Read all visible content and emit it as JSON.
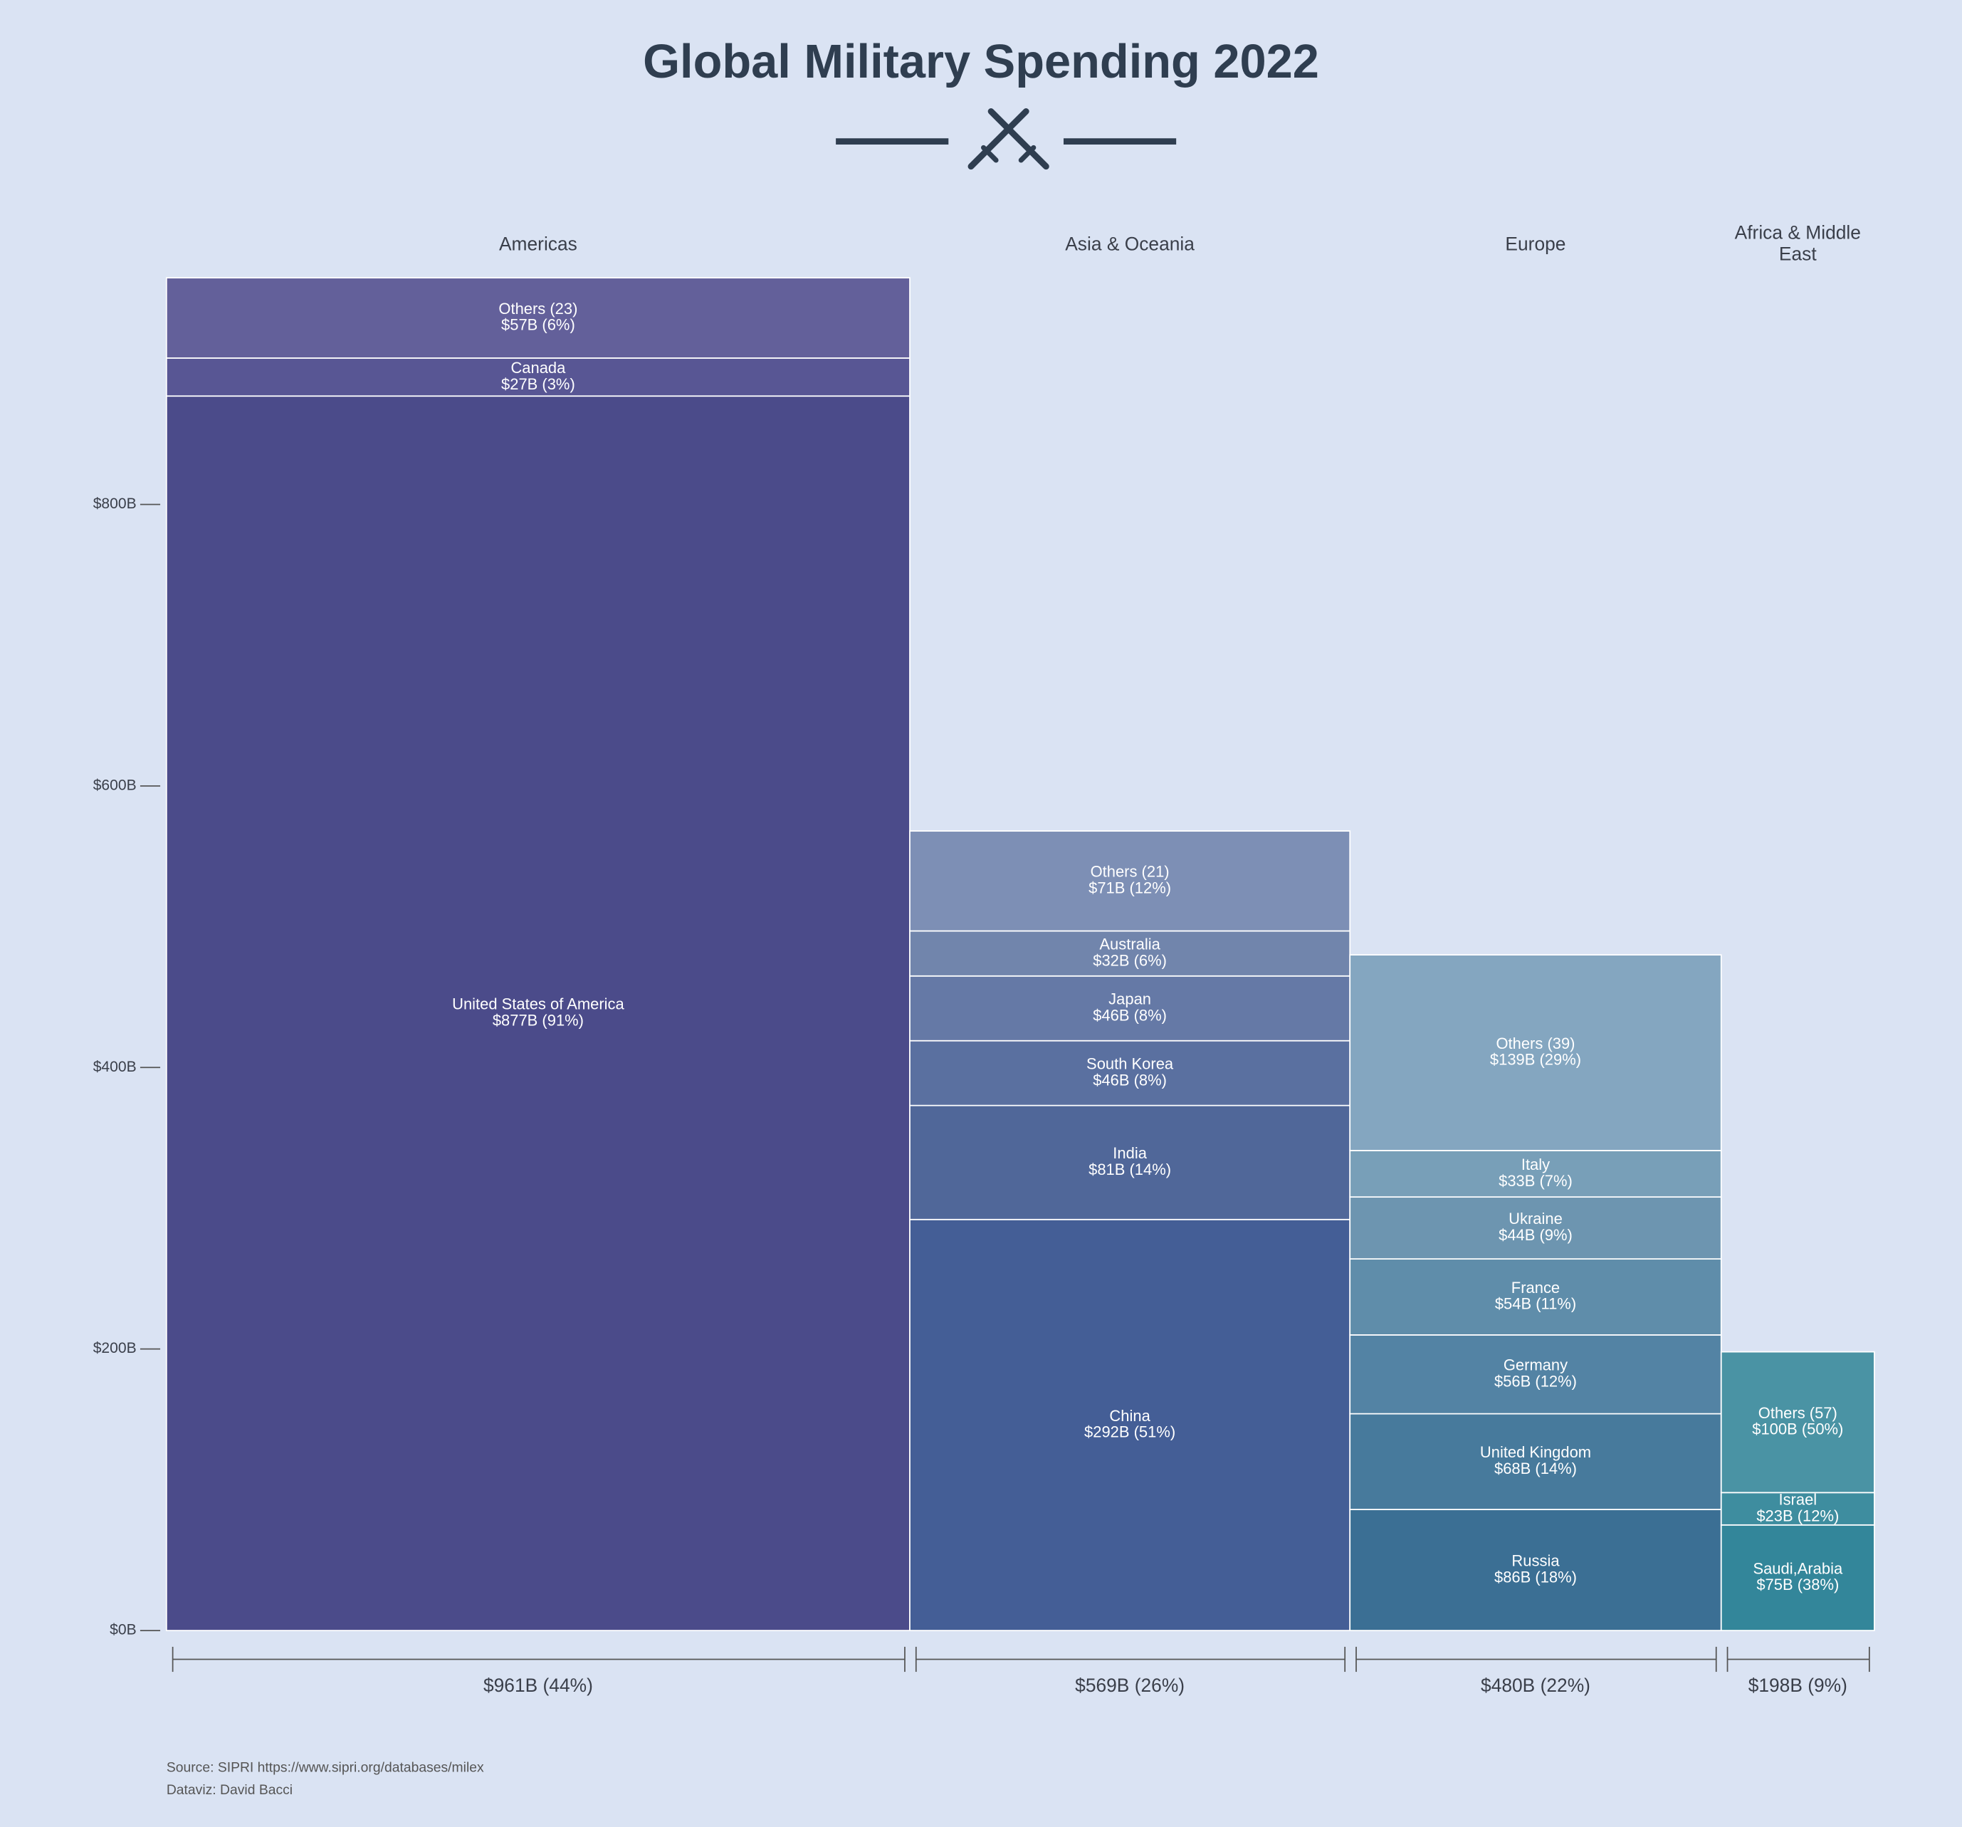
{
  "chart_data": {
    "type": "mekko",
    "title": "Global Military Spending 2022",
    "source": "Source: SIPRI https://www.sipri.org/databases/milex",
    "credit": "Dataviz: David Bacci",
    "ylim": [
      0,
      961
    ],
    "yticks": [
      {
        "value": 0,
        "label": "$0B"
      },
      {
        "value": 200,
        "label": "$200B"
      },
      {
        "value": 400,
        "label": "$400B"
      },
      {
        "value": 600,
        "label": "$600B"
      },
      {
        "value": 800,
        "label": "$800B"
      }
    ],
    "groups": [
      {
        "name": "Americas",
        "total": 961,
        "total_label": "$961B (44%)",
        "segments": [
          {
            "name": "United States of America",
            "value": 877,
            "value_label": "$877B (91%)",
            "color": "#4b4b8a"
          },
          {
            "name": "Canada",
            "value": 27,
            "value_label": "$27B (3%)",
            "color": "#585694"
          },
          {
            "name": "Others (23)",
            "value": 57,
            "value_label": "$57B (6%)",
            "color": "#63609a"
          }
        ]
      },
      {
        "name": "Asia & Oceania",
        "total": 569,
        "total_label": "$569B (26%)",
        "segments": [
          {
            "name": "China",
            "value": 292,
            "value_label": "$292B (51%)",
            "color": "#445e96"
          },
          {
            "name": "India",
            "value": 81,
            "value_label": "$81B (14%)",
            "color": "#506799"
          },
          {
            "name": "South Korea",
            "value": 46,
            "value_label": "$46B (8%)",
            "color": "#5a70a0"
          },
          {
            "name": "Japan",
            "value": 46,
            "value_label": "$46B (8%)",
            "color": "#6579a6"
          },
          {
            "name": "Australia",
            "value": 32,
            "value_label": "$32B (6%)",
            "color": "#7185ac"
          },
          {
            "name": "Others (21)",
            "value": 71,
            "value_label": "$71B (12%)",
            "color": "#7d8fb5"
          }
        ]
      },
      {
        "name": "Europe",
        "total": 480,
        "total_label": "$480B (22%)",
        "segments": [
          {
            "name": "Russia",
            "value": 86,
            "value_label": "$86B (18%)",
            "color": "#3b6f94"
          },
          {
            "name": "United Kingdom",
            "value": 68,
            "value_label": "$68B (14%)",
            "color": "#477a9c"
          },
          {
            "name": "Germany",
            "value": 56,
            "value_label": "$56B (12%)",
            "color": "#5383a4"
          },
          {
            "name": "France",
            "value": 54,
            "value_label": "$54B (11%)",
            "color": "#5f8daa"
          },
          {
            "name": "Ukraine",
            "value": 44,
            "value_label": "$44B (9%)",
            "color": "#6d95b0"
          },
          {
            "name": "Italy",
            "value": 33,
            "value_label": "$33B (7%)",
            "color": "#789fb8"
          },
          {
            "name": "Others (39)",
            "value": 139,
            "value_label": "$139B (29%)",
            "color": "#84a6c0"
          }
        ]
      },
      {
        "name": "Africa & Middle East",
        "total": 198,
        "total_label": "$198B (9%)",
        "segments": [
          {
            "name": "Saudi,Arabia",
            "value": 75,
            "value_label": "$75B (38%)",
            "color": "#33869a"
          },
          {
            "name": "Israel",
            "value": 23,
            "value_label": "$23B (12%)",
            "color": "#3e8d9f"
          },
          {
            "name": "Others (57)",
            "value": 100,
            "value_label": "$100B (50%)",
            "color": "#4a93a4"
          }
        ]
      }
    ]
  }
}
